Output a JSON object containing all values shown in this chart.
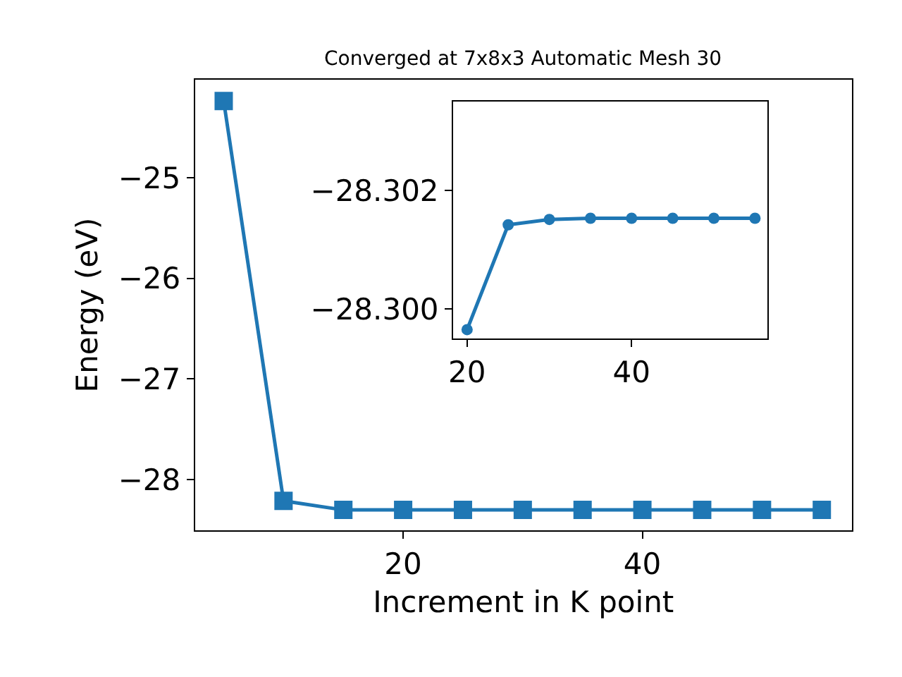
{
  "chart_data": [
    {
      "type": "line",
      "title": "Converged at 7x8x3 Automatic Mesh 30",
      "xlabel": "Increment in K point",
      "ylabel": "Energy (eV)",
      "x": [
        5,
        10,
        15,
        20,
        25,
        30,
        35,
        40,
        45,
        50,
        55
      ],
      "series": [
        {
          "color": "#1f77b4",
          "values": [
            -24.24,
            -28.21,
            -28.3,
            -28.3,
            -28.3,
            -28.3,
            -28.3,
            -28.3,
            -28.3,
            -28.3,
            -28.3
          ]
        }
      ],
      "xlim": [
        2.6,
        57.5
      ],
      "xticks": [
        20,
        40
      ],
      "ylim": [
        -28.5,
        -24.03
      ],
      "yticks": [
        -28,
        -27,
        -26,
        -25
      ],
      "marker": "square"
    },
    {
      "type": "line",
      "x": [
        20,
        25,
        30,
        35,
        40,
        45,
        50,
        55
      ],
      "series": [
        {
          "color": "#1f77b4",
          "values": [
            -28.29965,
            -28.30142,
            -28.30151,
            -28.30153,
            -28.30153,
            -28.30153,
            -28.30153,
            -28.30153
          ]
        }
      ],
      "xlim": [
        18.3,
        56.5
      ],
      "xticks": [
        20,
        40
      ],
      "ylim": [
        -28.2995,
        -28.3035
      ],
      "yticks": [
        {
          "value": -28.3,
          "label": "−28.300"
        },
        {
          "value": -28.302,
          "label": "−28.302"
        }
      ],
      "marker": "circle"
    }
  ]
}
